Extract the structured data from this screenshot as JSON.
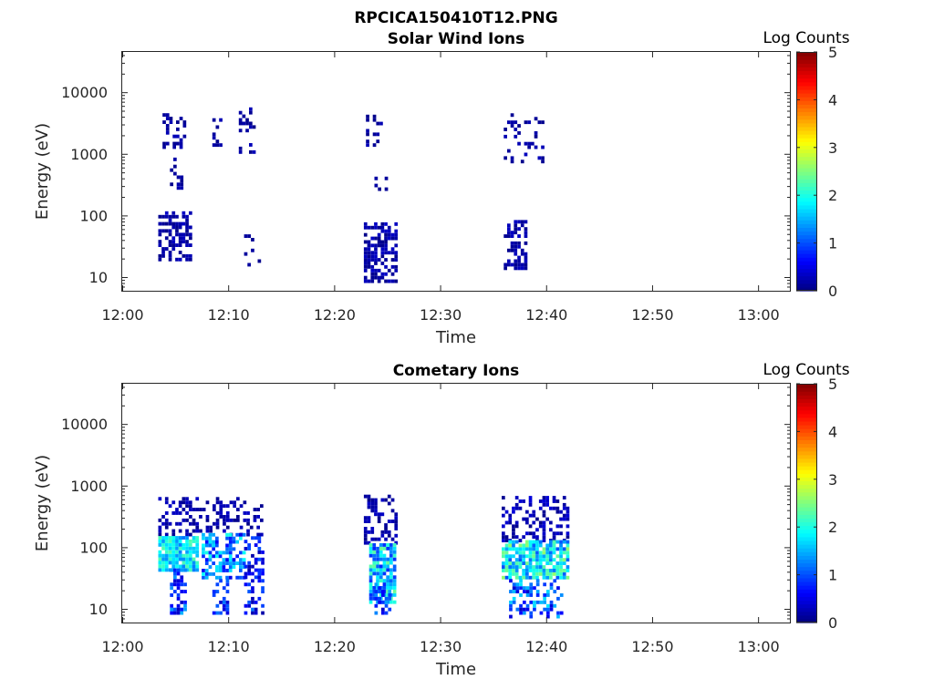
{
  "figure": {
    "title": "RPCICA150410T12.PNG"
  },
  "chart_data": [
    {
      "type": "heatmap",
      "title": "Solar Wind Ions",
      "xlabel": "Time",
      "ylabel": "Energy (eV)",
      "x_ticks": [
        "12:00",
        "12:10",
        "12:20",
        "12:30",
        "12:40",
        "12:50",
        "13:00"
      ],
      "x_range_minutes": [
        0,
        63
      ],
      "y_ticks": [
        "10",
        "100",
        "1000",
        "10000"
      ],
      "y_scale": "log",
      "y_range": [
        6,
        45000
      ],
      "grid": false,
      "colorbar": {
        "title": "Log Counts",
        "ticks": [
          "0",
          "1",
          "2",
          "3",
          "4",
          "5"
        ],
        "range": [
          0,
          5
        ],
        "colormap": "jet"
      },
      "bursts": [
        {
          "t_start_min": 3.4,
          "t_end_min": 6.5,
          "e_min": 18,
          "e_max": 110,
          "level_min": 0.05,
          "level_max": 0.35,
          "density": 0.55,
          "seed": 11
        },
        {
          "t_start_min": 3.8,
          "t_end_min": 6.0,
          "e_min": 1200,
          "e_max": 4000,
          "level_min": 0.05,
          "level_max": 0.3,
          "density": 0.35,
          "seed": 12
        },
        {
          "t_start_min": 4.5,
          "t_end_min": 5.5,
          "e_min": 200,
          "e_max": 800,
          "level_min": 0.05,
          "level_max": 0.25,
          "density": 0.2,
          "seed": 13
        },
        {
          "t_start_min": 8.5,
          "t_end_min": 9.5,
          "e_min": 1300,
          "e_max": 3500,
          "level_min": 0.05,
          "level_max": 0.3,
          "density": 0.3,
          "seed": 14
        },
        {
          "t_start_min": 11.0,
          "t_end_min": 12.5,
          "e_min": 1000,
          "e_max": 5500,
          "level_min": 0.05,
          "level_max": 0.3,
          "density": 0.25,
          "seed": 15
        },
        {
          "t_start_min": 11.5,
          "t_end_min": 13.0,
          "e_min": 13,
          "e_max": 45,
          "level_min": 0.05,
          "level_max": 0.2,
          "density": 0.15,
          "seed": 16
        },
        {
          "t_start_min": 22.8,
          "t_end_min": 25.8,
          "e_min": 8,
          "e_max": 70,
          "level_min": 0.05,
          "level_max": 0.35,
          "density": 0.6,
          "seed": 17
        },
        {
          "t_start_min": 23.0,
          "t_end_min": 24.5,
          "e_min": 1300,
          "e_max": 4000,
          "level_min": 0.05,
          "level_max": 0.3,
          "density": 0.3,
          "seed": 18
        },
        {
          "t_start_min": 23.8,
          "t_end_min": 25.0,
          "e_min": 250,
          "e_max": 450,
          "level_min": 0.05,
          "level_max": 0.2,
          "density": 0.15,
          "seed": 19
        },
        {
          "t_start_min": 36.0,
          "t_end_min": 38.0,
          "e_min": 13,
          "e_max": 75,
          "level_min": 0.05,
          "level_max": 0.35,
          "density": 0.55,
          "seed": 20
        },
        {
          "t_start_min": 36.0,
          "t_end_min": 39.8,
          "e_min": 700,
          "e_max": 4200,
          "level_min": 0.05,
          "level_max": 0.3,
          "density": 0.2,
          "seed": 21
        }
      ]
    },
    {
      "type": "heatmap",
      "title": "Cometary Ions",
      "xlabel": "Time",
      "ylabel": "Energy (eV)",
      "x_ticks": [
        "12:00",
        "12:10",
        "12:20",
        "12:30",
        "12:40",
        "12:50",
        "13:00"
      ],
      "x_range_minutes": [
        0,
        63
      ],
      "y_ticks": [
        "10",
        "100",
        "1000",
        "10000"
      ],
      "y_scale": "log",
      "y_range": [
        6,
        45000
      ],
      "grid": false,
      "colorbar": {
        "title": "Log Counts",
        "ticks": [
          "0",
          "1",
          "2",
          "3",
          "4",
          "5"
        ],
        "range": [
          0,
          5
        ],
        "colormap": "jet"
      },
      "bursts": [
        {
          "t_start_min": 3.4,
          "t_end_min": 13.2,
          "e_min": 150,
          "e_max": 650,
          "level_min": 0.05,
          "level_max": 0.35,
          "density": 0.35,
          "seed": 31
        },
        {
          "t_start_min": 3.4,
          "t_end_min": 7.0,
          "e_min": 40,
          "e_max": 150,
          "level_min": 1.2,
          "level_max": 2.3,
          "density": 0.85,
          "seed": 32
        },
        {
          "t_start_min": 4.5,
          "t_end_min": 6.0,
          "e_min": 8,
          "e_max": 40,
          "level_min": 0.3,
          "level_max": 1.5,
          "density": 0.55,
          "seed": 33
        },
        {
          "t_start_min": 7.5,
          "t_end_min": 11.5,
          "e_min": 30,
          "e_max": 150,
          "level_min": 0.5,
          "level_max": 2.0,
          "density": 0.6,
          "seed": 34
        },
        {
          "t_start_min": 8.5,
          "t_end_min": 10.0,
          "e_min": 8,
          "e_max": 30,
          "level_min": 0.3,
          "level_max": 1.2,
          "density": 0.5,
          "seed": 35
        },
        {
          "t_start_min": 11.5,
          "t_end_min": 13.2,
          "e_min": 8,
          "e_max": 150,
          "level_min": 0.2,
          "level_max": 1.2,
          "density": 0.35,
          "seed": 36
        },
        {
          "t_start_min": 22.8,
          "t_end_min": 25.8,
          "e_min": 110,
          "e_max": 650,
          "level_min": 0.05,
          "level_max": 0.35,
          "density": 0.35,
          "seed": 37
        },
        {
          "t_start_min": 23.3,
          "t_end_min": 25.8,
          "e_min": 12,
          "e_max": 110,
          "level_min": 0.8,
          "level_max": 2.4,
          "density": 0.85,
          "seed": 38
        },
        {
          "t_start_min": 23.8,
          "t_end_min": 25.2,
          "e_min": 8,
          "e_max": 25,
          "level_min": 0.3,
          "level_max": 1.5,
          "density": 0.5,
          "seed": 39
        },
        {
          "t_start_min": 35.8,
          "t_end_min": 42.2,
          "e_min": 120,
          "e_max": 600,
          "level_min": 0.05,
          "level_max": 0.45,
          "density": 0.4,
          "seed": 40
        },
        {
          "t_start_min": 35.8,
          "t_end_min": 42.2,
          "e_min": 30,
          "e_max": 120,
          "level_min": 1.0,
          "level_max": 2.6,
          "density": 0.85,
          "seed": 41
        },
        {
          "t_start_min": 36.5,
          "t_end_min": 41.5,
          "e_min": 7,
          "e_max": 30,
          "level_min": 0.3,
          "level_max": 1.8,
          "density": 0.5,
          "seed": 42
        }
      ]
    }
  ]
}
